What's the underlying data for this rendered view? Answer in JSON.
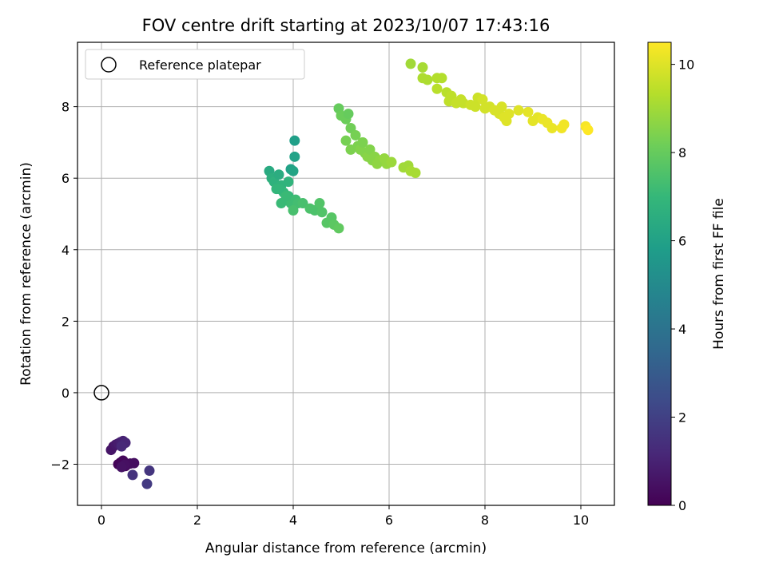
{
  "chart_data": {
    "type": "scatter",
    "title": "FOV centre drift starting at 2023/10/07 17:43:16",
    "xlabel": "Angular distance from reference (arcmin)",
    "ylabel": "Rotation from reference (arcmin)",
    "xlim": [
      -0.5,
      10.7
    ],
    "ylim": [
      -3.15,
      9.8
    ],
    "xticks": [
      0,
      2,
      4,
      6,
      8,
      10
    ],
    "xtick_labels": [
      "0",
      "2",
      "4",
      "6",
      "8",
      "10"
    ],
    "yticks": [
      -2,
      0,
      2,
      4,
      6,
      8
    ],
    "ytick_labels": [
      "−2",
      "0",
      "2",
      "4",
      "6",
      "8"
    ],
    "grid": true,
    "legend": {
      "placement": "top-left",
      "entries": [
        "Reference platepar"
      ]
    },
    "reference_point": {
      "x": 0,
      "y": 0
    },
    "colorbar": {
      "label": "Hours from first FF file",
      "colormap": "viridis",
      "range": [
        0,
        10.5
      ],
      "ticks": [
        0,
        2,
        4,
        6,
        8,
        10
      ],
      "tick_labels": [
        "0",
        "2",
        "4",
        "6",
        "8",
        "10"
      ]
    },
    "colormap_stops": [
      "#440154",
      "#482878",
      "#3e4a89",
      "#31688e",
      "#26828e",
      "#1f9e89",
      "#35b779",
      "#6ece58",
      "#b5de2b",
      "#fde725"
    ],
    "points": [
      {
        "x": 0.25,
        "y": -1.5,
        "t": 0.5
      },
      {
        "x": 0.2,
        "y": -1.6,
        "t": 0.6
      },
      {
        "x": 0.3,
        "y": -1.45,
        "t": 0.7
      },
      {
        "x": 0.35,
        "y": -1.42,
        "t": 0.8
      },
      {
        "x": 0.4,
        "y": -1.38,
        "t": 0.9
      },
      {
        "x": 0.45,
        "y": -1.35,
        "t": 1.0
      },
      {
        "x": 0.5,
        "y": -1.4,
        "t": 1.1
      },
      {
        "x": 0.42,
        "y": -1.5,
        "t": 1.2
      },
      {
        "x": 0.35,
        "y": -2.0,
        "t": 0.1
      },
      {
        "x": 0.4,
        "y": -1.95,
        "t": 0.15
      },
      {
        "x": 0.45,
        "y": -1.9,
        "t": 0.2
      },
      {
        "x": 0.5,
        "y": -2.05,
        "t": 0.25
      },
      {
        "x": 0.55,
        "y": -2.0,
        "t": 0.3
      },
      {
        "x": 0.6,
        "y": -1.98,
        "t": 0.35
      },
      {
        "x": 0.68,
        "y": -1.97,
        "t": 0.4
      },
      {
        "x": 0.48,
        "y": -2.02,
        "t": 0.45
      },
      {
        "x": 0.42,
        "y": -2.08,
        "t": 0.5
      },
      {
        "x": 0.65,
        "y": -2.3,
        "t": 1.5
      },
      {
        "x": 1.0,
        "y": -2.18,
        "t": 1.6
      },
      {
        "x": 0.95,
        "y": -2.55,
        "t": 1.8
      },
      {
        "x": 3.5,
        "y": 6.2,
        "t": 6.4
      },
      {
        "x": 3.55,
        "y": 6.0,
        "t": 6.6
      },
      {
        "x": 3.6,
        "y": 5.9,
        "t": 6.7
      },
      {
        "x": 3.65,
        "y": 5.7,
        "t": 6.9
      },
      {
        "x": 3.7,
        "y": 6.1,
        "t": 6.5
      },
      {
        "x": 3.75,
        "y": 5.8,
        "t": 6.8
      },
      {
        "x": 3.8,
        "y": 5.6,
        "t": 7.0
      },
      {
        "x": 3.85,
        "y": 5.4,
        "t": 7.1
      },
      {
        "x": 3.9,
        "y": 5.5,
        "t": 7.0
      },
      {
        "x": 3.95,
        "y": 5.3,
        "t": 7.2
      },
      {
        "x": 3.9,
        "y": 5.9,
        "t": 6.8
      },
      {
        "x": 3.95,
        "y": 6.25,
        "t": 6.0
      },
      {
        "x": 4.0,
        "y": 6.2,
        "t": 6.1
      },
      {
        "x": 4.03,
        "y": 6.6,
        "t": 6.0
      },
      {
        "x": 4.03,
        "y": 7.05,
        "t": 5.9
      },
      {
        "x": 4.05,
        "y": 5.4,
        "t": 7.2
      },
      {
        "x": 4.1,
        "y": 5.3,
        "t": 7.3
      },
      {
        "x": 4.0,
        "y": 5.1,
        "t": 7.4
      },
      {
        "x": 3.75,
        "y": 5.3,
        "t": 7.1
      },
      {
        "x": 3.7,
        "y": 5.7,
        "t": 6.9
      },
      {
        "x": 4.2,
        "y": 5.3,
        "t": 7.4
      },
      {
        "x": 4.35,
        "y": 5.15,
        "t": 7.5
      },
      {
        "x": 4.45,
        "y": 5.1,
        "t": 7.5
      },
      {
        "x": 4.55,
        "y": 5.3,
        "t": 7.6
      },
      {
        "x": 4.6,
        "y": 5.05,
        "t": 7.6
      },
      {
        "x": 4.7,
        "y": 4.75,
        "t": 7.7
      },
      {
        "x": 4.8,
        "y": 4.9,
        "t": 7.7
      },
      {
        "x": 4.85,
        "y": 4.7,
        "t": 7.8
      },
      {
        "x": 4.95,
        "y": 4.6,
        "t": 7.9
      },
      {
        "x": 3.85,
        "y": 5.5,
        "t": 7.1
      },
      {
        "x": 4.95,
        "y": 7.95,
        "t": 8.0
      },
      {
        "x": 5.0,
        "y": 7.75,
        "t": 8.1
      },
      {
        "x": 5.1,
        "y": 7.65,
        "t": 8.1
      },
      {
        "x": 5.15,
        "y": 7.8,
        "t": 8.0
      },
      {
        "x": 5.2,
        "y": 7.4,
        "t": 8.2
      },
      {
        "x": 5.1,
        "y": 7.05,
        "t": 8.3
      },
      {
        "x": 5.3,
        "y": 7.2,
        "t": 8.3
      },
      {
        "x": 5.2,
        "y": 6.8,
        "t": 8.4
      },
      {
        "x": 5.35,
        "y": 6.9,
        "t": 8.4
      },
      {
        "x": 5.4,
        "y": 6.8,
        "t": 8.5
      },
      {
        "x": 5.45,
        "y": 7.0,
        "t": 8.4
      },
      {
        "x": 5.5,
        "y": 6.7,
        "t": 8.5
      },
      {
        "x": 5.55,
        "y": 6.6,
        "t": 8.6
      },
      {
        "x": 5.6,
        "y": 6.8,
        "t": 8.5
      },
      {
        "x": 5.65,
        "y": 6.5,
        "t": 8.6
      },
      {
        "x": 5.7,
        "y": 6.6,
        "t": 8.6
      },
      {
        "x": 5.75,
        "y": 6.4,
        "t": 8.7
      },
      {
        "x": 5.8,
        "y": 6.5,
        "t": 8.7
      },
      {
        "x": 5.9,
        "y": 6.55,
        "t": 8.8
      },
      {
        "x": 5.95,
        "y": 6.4,
        "t": 8.8
      },
      {
        "x": 6.05,
        "y": 6.45,
        "t": 8.9
      },
      {
        "x": 6.3,
        "y": 6.3,
        "t": 9.0
      },
      {
        "x": 6.4,
        "y": 6.35,
        "t": 9.0
      },
      {
        "x": 6.45,
        "y": 6.2,
        "t": 9.1
      },
      {
        "x": 6.55,
        "y": 6.15,
        "t": 9.1
      },
      {
        "x": 6.45,
        "y": 9.2,
        "t": 9.0
      },
      {
        "x": 6.7,
        "y": 9.1,
        "t": 9.1
      },
      {
        "x": 6.7,
        "y": 8.8,
        "t": 9.2
      },
      {
        "x": 6.8,
        "y": 8.75,
        "t": 9.2
      },
      {
        "x": 7.0,
        "y": 8.8,
        "t": 9.3
      },
      {
        "x": 7.1,
        "y": 8.8,
        "t": 9.3
      },
      {
        "x": 7.0,
        "y": 8.5,
        "t": 9.4
      },
      {
        "x": 7.2,
        "y": 8.4,
        "t": 9.4
      },
      {
        "x": 7.3,
        "y": 8.3,
        "t": 9.5
      },
      {
        "x": 7.25,
        "y": 8.15,
        "t": 9.5
      },
      {
        "x": 7.4,
        "y": 8.1,
        "t": 9.6
      },
      {
        "x": 7.5,
        "y": 8.2,
        "t": 9.6
      },
      {
        "x": 7.55,
        "y": 8.1,
        "t": 9.6
      },
      {
        "x": 7.7,
        "y": 8.05,
        "t": 9.7
      },
      {
        "x": 7.8,
        "y": 8.0,
        "t": 9.7
      },
      {
        "x": 7.85,
        "y": 8.25,
        "t": 9.7
      },
      {
        "x": 7.95,
        "y": 8.2,
        "t": 9.8
      },
      {
        "x": 8.0,
        "y": 7.95,
        "t": 9.8
      },
      {
        "x": 8.1,
        "y": 8.0,
        "t": 9.8
      },
      {
        "x": 8.2,
        "y": 7.9,
        "t": 9.9
      },
      {
        "x": 8.3,
        "y": 7.8,
        "t": 9.9
      },
      {
        "x": 8.35,
        "y": 8.0,
        "t": 9.9
      },
      {
        "x": 8.4,
        "y": 7.7,
        "t": 10.0
      },
      {
        "x": 8.45,
        "y": 7.6,
        "t": 10.0
      },
      {
        "x": 8.5,
        "y": 7.8,
        "t": 10.0
      },
      {
        "x": 8.7,
        "y": 7.9,
        "t": 10.0
      },
      {
        "x": 8.9,
        "y": 7.85,
        "t": 10.1
      },
      {
        "x": 9.0,
        "y": 7.6,
        "t": 10.1
      },
      {
        "x": 9.1,
        "y": 7.7,
        "t": 10.1
      },
      {
        "x": 9.2,
        "y": 7.65,
        "t": 10.2
      },
      {
        "x": 9.3,
        "y": 7.55,
        "t": 10.2
      },
      {
        "x": 9.4,
        "y": 7.4,
        "t": 10.2
      },
      {
        "x": 9.65,
        "y": 7.5,
        "t": 10.3
      },
      {
        "x": 9.6,
        "y": 7.4,
        "t": 10.3
      },
      {
        "x": 10.1,
        "y": 7.45,
        "t": 10.4
      },
      {
        "x": 10.15,
        "y": 7.35,
        "t": 10.5
      }
    ]
  }
}
